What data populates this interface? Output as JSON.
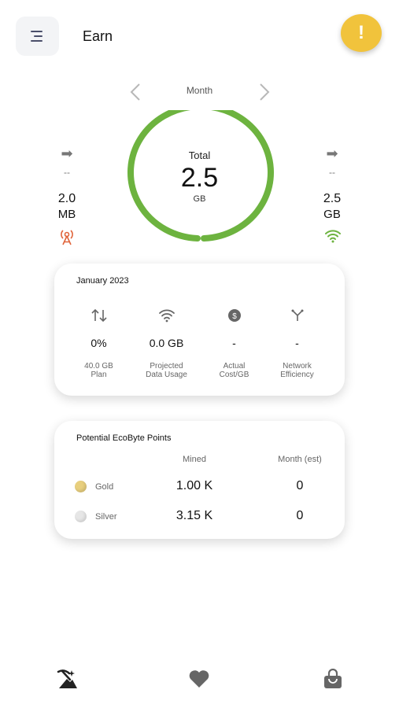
{
  "header": {
    "title": "Earn",
    "alert_label": "!"
  },
  "period": {
    "label": "Month"
  },
  "usage": {
    "total_label": "Total",
    "total_value": "2.5",
    "total_unit": "GB",
    "cellular": {
      "dash": "--",
      "value": "2.0",
      "unit": "MB"
    },
    "wifi": {
      "dash": "--",
      "value": "2.5",
      "unit": "GB"
    },
    "ring_color": "#6db33f",
    "cellular_color": "#e0643a",
    "wifi_color": "#6db33f"
  },
  "plan_card": {
    "title": "January 2023",
    "stats": [
      {
        "value": "0%",
        "label_line1": "40.0 GB",
        "label_line2": "Plan"
      },
      {
        "value": "0.0 GB",
        "label_line1": "Projected",
        "label_line2": "Data Usage"
      },
      {
        "value": "-",
        "label_line1": "Actual",
        "label_line2": "Cost/GB"
      },
      {
        "value": "-",
        "label_line1": "Network",
        "label_line2": "Efficiency"
      }
    ]
  },
  "points_card": {
    "title": "Potential EcoByte Points",
    "col_mined": "Mined",
    "col_month": "Month (est)",
    "rows": [
      {
        "label": "Gold",
        "mined": "1.00 K",
        "month": "0",
        "color": "#e8cf7e"
      },
      {
        "label": "Silver",
        "mined": "3.15 K",
        "month": "0",
        "color": "#e6e6e6"
      }
    ]
  }
}
